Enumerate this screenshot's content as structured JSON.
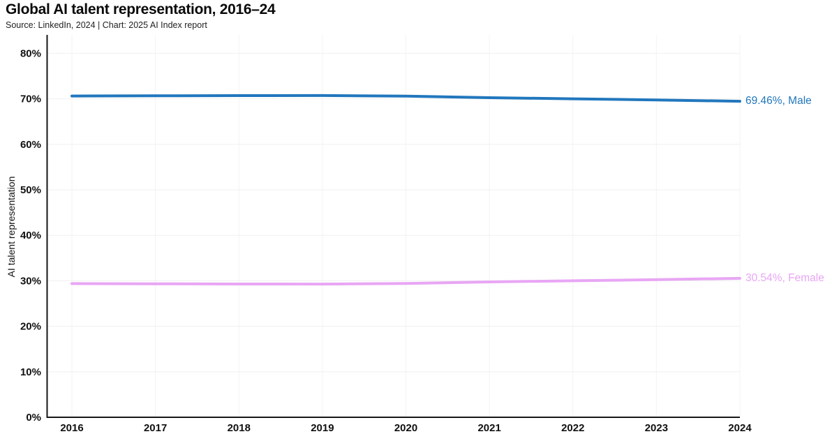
{
  "title": "Global AI talent representation, 2016–24",
  "subtitle": "Source: LinkedIn, 2024 | Chart: 2025 AI Index report",
  "colors": {
    "male": "#2177bd",
    "female": "#e8a6f4",
    "grid_horizontal": "#f0f0f0",
    "grid_vertical": "#f5f3f3",
    "axis": "#161616",
    "text": "#111111"
  },
  "chart_data": {
    "type": "line",
    "title": "Global AI talent representation, 2016–24",
    "subtitle": "Source: LinkedIn, 2024 | Chart: 2025 AI Index report",
    "x": [
      2016,
      2017,
      2018,
      2019,
      2020,
      2021,
      2022,
      2023,
      2024
    ],
    "series": [
      {
        "name": "Male",
        "color_key": "male",
        "values": [
          70.61,
          70.66,
          70.7,
          70.72,
          70.6,
          70.25,
          70.0,
          69.75,
          69.46
        ],
        "end_label": "69.46%, Male"
      },
      {
        "name": "Female",
        "color_key": "female",
        "values": [
          29.39,
          29.34,
          29.3,
          29.28,
          29.4,
          29.75,
          30.0,
          30.25,
          30.54
        ],
        "end_label": "30.54%, Female"
      }
    ],
    "xlabel": "",
    "ylabel": "AI talent representation",
    "ylim": [
      0,
      80
    ],
    "ytick_step": 10,
    "ytick_suffix": "%",
    "grid": true,
    "legend_position": "end-of-line"
  }
}
